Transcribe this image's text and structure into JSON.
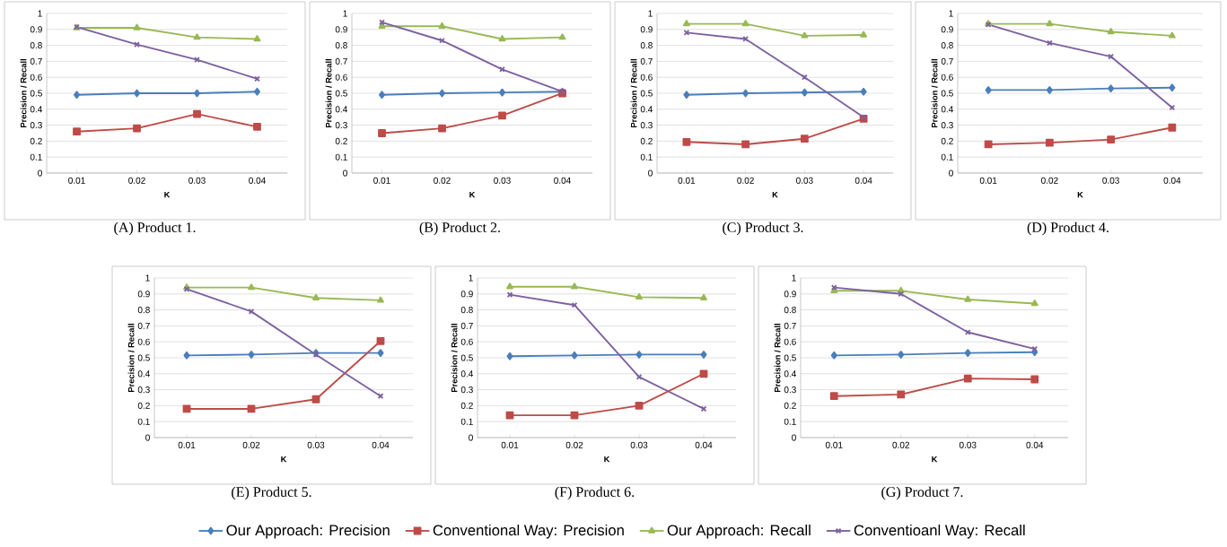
{
  "chart_data": [
    {
      "type": "line",
      "title": "(A) Product 1.",
      "xlabel": "K",
      "ylabel": "Precision / Recall",
      "categories": [
        "0.01",
        "0.02",
        "0.03",
        "0.04"
      ],
      "ylim": [
        0,
        1
      ],
      "yticks": [
        0,
        0.1,
        0.2,
        0.3,
        0.4,
        0.5,
        0.6,
        0.7,
        0.8,
        0.9,
        1
      ],
      "grid": "y",
      "series": [
        {
          "color": "#4a7ebb",
          "marker": "diamond",
          "values": [
            0.49,
            0.5,
            0.5,
            0.51
          ]
        },
        {
          "color": "#be4b48",
          "marker": "square",
          "values": [
            0.26,
            0.28,
            0.37,
            0.29
          ]
        },
        {
          "color": "#98b954",
          "marker": "triangle",
          "values": [
            0.91,
            0.91,
            0.85,
            0.84
          ]
        },
        {
          "color": "#7d60a0",
          "marker": "cross",
          "values": [
            0.915,
            0.805,
            0.71,
            0.59
          ]
        }
      ]
    },
    {
      "type": "line",
      "title": "(B) Product 2.",
      "xlabel": "K",
      "ylabel": "Precision / Recall",
      "categories": [
        "0.01",
        "0.02",
        "0.03",
        "0.04"
      ],
      "ylim": [
        0,
        1
      ],
      "yticks": [
        0,
        0.1,
        0.2,
        0.3,
        0.4,
        0.5,
        0.6,
        0.7,
        0.8,
        0.9,
        1
      ],
      "grid": "y",
      "series": [
        {
          "color": "#4a7ebb",
          "marker": "diamond",
          "values": [
            0.49,
            0.5,
            0.505,
            0.51
          ]
        },
        {
          "color": "#be4b48",
          "marker": "square",
          "values": [
            0.25,
            0.28,
            0.36,
            0.5
          ]
        },
        {
          "color": "#98b954",
          "marker": "triangle",
          "values": [
            0.92,
            0.92,
            0.84,
            0.85
          ]
        },
        {
          "color": "#7d60a0",
          "marker": "cross",
          "values": [
            0.945,
            0.83,
            0.65,
            0.51
          ]
        }
      ]
    },
    {
      "type": "line",
      "title": "(C) Product 3.",
      "xlabel": "K",
      "ylabel": "Precision / Recall",
      "categories": [
        "0.01",
        "0.02",
        "0.03",
        "0.04"
      ],
      "ylim": [
        0,
        1
      ],
      "yticks": [
        0,
        0.1,
        0.2,
        0.3,
        0.4,
        0.5,
        0.6,
        0.7,
        0.8,
        0.9,
        1
      ],
      "grid": "y",
      "series": [
        {
          "color": "#4a7ebb",
          "marker": "diamond",
          "values": [
            0.49,
            0.5,
            0.505,
            0.51
          ]
        },
        {
          "color": "#be4b48",
          "marker": "square",
          "values": [
            0.195,
            0.18,
            0.215,
            0.34
          ]
        },
        {
          "color": "#98b954",
          "marker": "triangle",
          "values": [
            0.935,
            0.935,
            0.86,
            0.865
          ]
        },
        {
          "color": "#7d60a0",
          "marker": "cross",
          "values": [
            0.88,
            0.84,
            0.6,
            0.35
          ]
        }
      ]
    },
    {
      "type": "line",
      "title": "(D) Product 4.",
      "xlabel": "K",
      "ylabel": "Precision / Recall",
      "categories": [
        "0.01",
        "0.02",
        "0.03",
        "0.04"
      ],
      "ylim": [
        0,
        1
      ],
      "yticks": [
        0,
        0.1,
        0.2,
        0.3,
        0.4,
        0.5,
        0.6,
        0.7,
        0.8,
        0.9,
        1
      ],
      "grid": "y",
      "series": [
        {
          "color": "#4a7ebb",
          "marker": "diamond",
          "values": [
            0.52,
            0.52,
            0.53,
            0.535
          ]
        },
        {
          "color": "#be4b48",
          "marker": "square",
          "values": [
            0.18,
            0.19,
            0.21,
            0.285
          ]
        },
        {
          "color": "#98b954",
          "marker": "triangle",
          "values": [
            0.935,
            0.935,
            0.885,
            0.86
          ]
        },
        {
          "color": "#7d60a0",
          "marker": "cross",
          "values": [
            0.93,
            0.815,
            0.73,
            0.41
          ]
        }
      ]
    },
    {
      "type": "line",
      "title": "(E) Product 5.",
      "xlabel": "K",
      "ylabel": "Precision / Recall",
      "categories": [
        "0.01",
        "0.02",
        "0.03",
        "0.04"
      ],
      "ylim": [
        0,
        1
      ],
      "yticks": [
        0,
        0.1,
        0.2,
        0.3,
        0.4,
        0.5,
        0.6,
        0.7,
        0.8,
        0.9,
        1
      ],
      "grid": "y",
      "series": [
        {
          "color": "#4a7ebb",
          "marker": "diamond",
          "values": [
            0.515,
            0.52,
            0.53,
            0.53
          ]
        },
        {
          "color": "#be4b48",
          "marker": "square",
          "values": [
            0.18,
            0.18,
            0.24,
            0.605
          ]
        },
        {
          "color": "#98b954",
          "marker": "triangle",
          "values": [
            0.94,
            0.94,
            0.875,
            0.86
          ]
        },
        {
          "color": "#7d60a0",
          "marker": "cross",
          "values": [
            0.93,
            0.79,
            0.52,
            0.26
          ]
        }
      ]
    },
    {
      "type": "line",
      "title": "(F) Product 6.",
      "xlabel": "K",
      "ylabel": "Precision / Recall",
      "categories": [
        "0.01",
        "0.02",
        "0.03",
        "0.04"
      ],
      "ylim": [
        0,
        1
      ],
      "yticks": [
        0,
        0.1,
        0.2,
        0.3,
        0.4,
        0.5,
        0.6,
        0.7,
        0.8,
        0.9,
        1
      ],
      "grid": "y",
      "series": [
        {
          "color": "#4a7ebb",
          "marker": "diamond",
          "values": [
            0.51,
            0.515,
            0.52,
            0.52
          ]
        },
        {
          "color": "#be4b48",
          "marker": "square",
          "values": [
            0.14,
            0.14,
            0.2,
            0.4
          ]
        },
        {
          "color": "#98b954",
          "marker": "triangle",
          "values": [
            0.945,
            0.945,
            0.88,
            0.875
          ]
        },
        {
          "color": "#7d60a0",
          "marker": "cross",
          "values": [
            0.895,
            0.83,
            0.38,
            0.18
          ]
        }
      ]
    },
    {
      "type": "line",
      "title": "(G) Product 7.",
      "xlabel": "K",
      "ylabel": "Precision / Recall",
      "categories": [
        "0.01",
        "0.02",
        "0.03",
        "0.04"
      ],
      "ylim": [
        0,
        1
      ],
      "yticks": [
        0,
        0.1,
        0.2,
        0.3,
        0.4,
        0.5,
        0.6,
        0.7,
        0.8,
        0.9,
        1
      ],
      "grid": "y",
      "legend": "bottom",
      "series": [
        {
          "name": "Our Approach: Precision",
          "color": "#4a7ebb",
          "marker": "diamond",
          "values": [
            0.515,
            0.52,
            0.53,
            0.535
          ]
        },
        {
          "name": "Conventional Way: Precision",
          "color": "#be4b48",
          "marker": "square",
          "values": [
            0.26,
            0.27,
            0.37,
            0.365
          ]
        },
        {
          "name": "Our Approach: Recall",
          "color": "#98b954",
          "marker": "triangle",
          "values": [
            0.92,
            0.92,
            0.865,
            0.84
          ]
        },
        {
          "name": "Conventioanl Way: Recall",
          "color": "#7d60a0",
          "marker": "cross",
          "values": [
            0.94,
            0.9,
            0.66,
            0.555
          ]
        }
      ]
    }
  ]
}
